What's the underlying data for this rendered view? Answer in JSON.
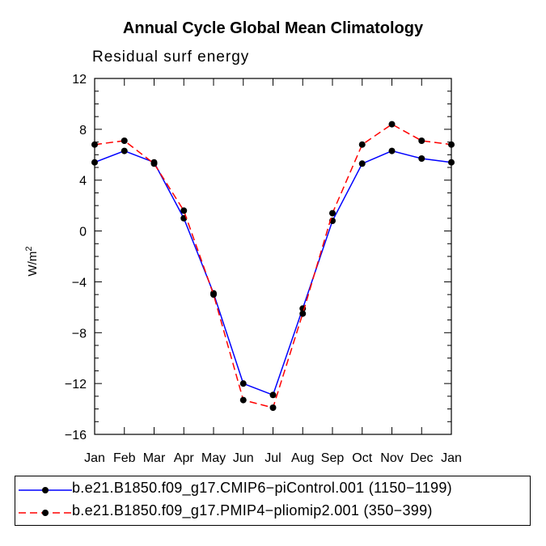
{
  "chart_data": {
    "type": "line",
    "title": "Annual Cycle Global Mean Climatology",
    "subtitle": "Residual surf energy",
    "ylabel": "W/m",
    "ylabel_superscript": "2",
    "xlabel": "",
    "categories": [
      "Jan",
      "Feb",
      "Mar",
      "Apr",
      "May",
      "Jun",
      "Jul",
      "Aug",
      "Sep",
      "Oct",
      "Nov",
      "Dec",
      "Jan"
    ],
    "ylim": [
      -16,
      12
    ],
    "yticks": [
      -16,
      -12,
      -8,
      -4,
      0,
      4,
      8,
      12
    ],
    "ytick_labels": [
      "−16",
      "−12",
      "−8",
      "−4",
      "0",
      "4",
      "8",
      "12"
    ],
    "series": [
      {
        "name": "b.e21.B1850.f09_g17.CMIP6−piControl.001 (1150−1199)",
        "color": "#0000ff",
        "style": "solid",
        "values": [
          5.4,
          6.3,
          5.4,
          1.0,
          -4.9,
          -12.0,
          -12.9,
          -6.1,
          0.8,
          5.3,
          6.3,
          5.7,
          5.4
        ]
      },
      {
        "name": "b.e21.B1850.f09_g17.PMIP4−pliomip2.001 (350−399)",
        "color": "#ff0000",
        "style": "dashed",
        "values": [
          6.8,
          7.1,
          5.3,
          1.6,
          -5.0,
          -13.3,
          -13.9,
          -6.5,
          1.4,
          6.8,
          8.4,
          7.1,
          6.8
        ]
      }
    ],
    "legend_position": "bottom"
  }
}
